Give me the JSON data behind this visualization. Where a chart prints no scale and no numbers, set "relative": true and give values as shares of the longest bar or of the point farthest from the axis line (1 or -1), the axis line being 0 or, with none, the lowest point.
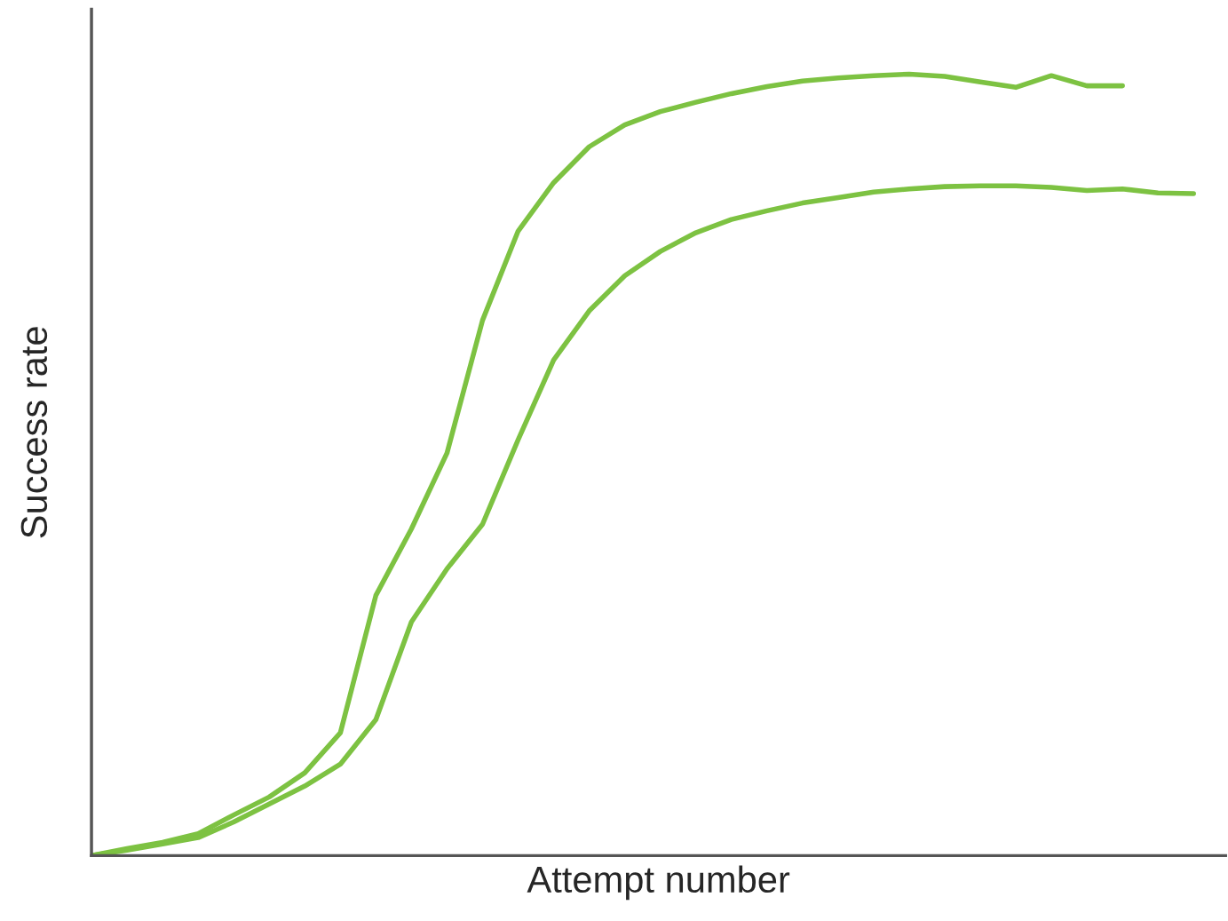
{
  "chart_data": {
    "type": "line",
    "relative": true,
    "xlabel": "Attempt number",
    "ylabel": "Success rate",
    "categories": [
      null,
      null,
      null,
      null,
      null,
      null,
      null,
      null,
      null,
      null,
      null,
      null,
      null,
      null,
      null,
      null,
      null,
      null,
      null,
      null,
      null,
      null,
      null,
      null,
      null,
      null,
      null,
      null,
      null,
      null,
      null,
      null
    ],
    "series": [
      {
        "color": "#7dc242",
        "values": [
          0,
          0.009,
          0.017,
          0.028,
          0.052,
          0.075,
          0.106,
          0.157,
          0.333,
          0.418,
          0.515,
          0.685,
          0.799,
          0.861,
          0.907,
          0.935,
          0.952,
          0.964,
          0.975,
          0.984,
          0.991,
          0.995,
          0.998,
          1.0,
          0.997,
          0.99,
          0.983,
          0.998,
          0.985,
          0.985,
          null,
          null
        ]
      },
      {
        "color": "#7dc242",
        "values": [
          0,
          0.007,
          0.015,
          0.023,
          0.043,
          0.066,
          0.089,
          0.117,
          0.174,
          0.299,
          0.367,
          0.424,
          0.532,
          0.634,
          0.697,
          0.742,
          0.773,
          0.797,
          0.814,
          0.825,
          0.835,
          0.842,
          0.849,
          0.853,
          0.856,
          0.857,
          0.857,
          0.855,
          0.851,
          0.853,
          0.848,
          0.847
        ]
      }
    ],
    "legend": false,
    "marker": "none",
    "line_style": "solid"
  }
}
